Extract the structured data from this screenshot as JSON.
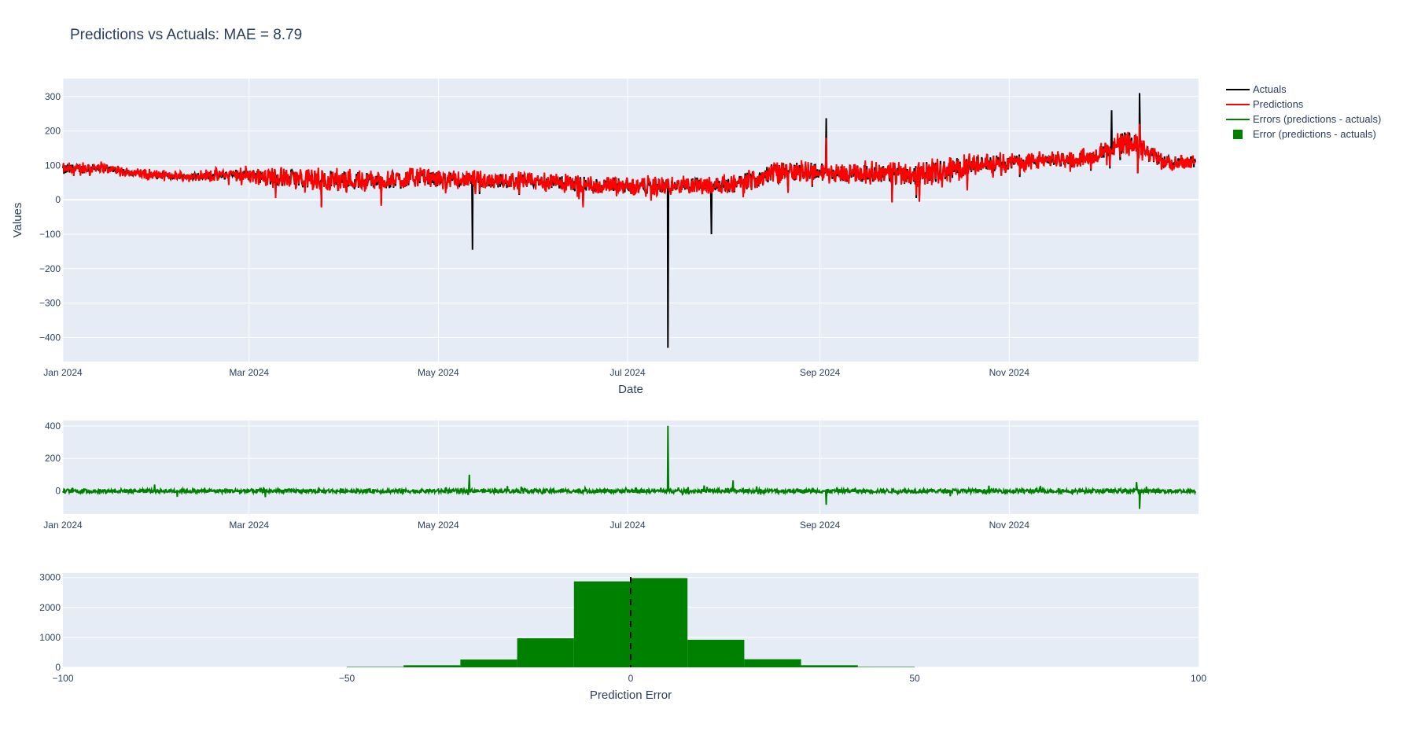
{
  "chart_data": [
    {
      "type": "line",
      "title": "Predictions vs Actuals: MAE = 8.79",
      "xlabel": "Date",
      "ylabel": "Values",
      "x_range": [
        "2024-01-01",
        "2024-12-31"
      ],
      "ylim": [
        -470,
        352
      ],
      "x_ticks": [
        "Jan 2024",
        "Mar 2024",
        "May 2024",
        "Jul 2024",
        "Sep 2024",
        "Nov 2024"
      ],
      "x_tick_days": [
        0,
        60,
        121,
        182,
        244,
        305
      ],
      "y_ticks": [
        300,
        200,
        100,
        0,
        -100,
        -200,
        -300,
        -400
      ],
      "y_tick_labels": [
        "300",
        "200",
        "100",
        "0",
        "−100",
        "−200",
        "−300",
        "−400"
      ],
      "grid": true,
      "legend_position": "right",
      "semi_monthly_level_actuals": [
        90,
        95,
        80,
        70,
        72,
        78,
        70,
        65,
        62,
        60,
        70,
        62,
        60,
        58,
        55,
        45,
        45,
        42,
        48,
        50,
        85,
        90,
        80,
        85,
        80,
        95,
        110,
        115,
        120,
        130,
        175,
        115
      ],
      "semi_monthly_noise": [
        25,
        15,
        12,
        12,
        15,
        25,
        35,
        40,
        40,
        35,
        35,
        30,
        30,
        30,
        30,
        35,
        35,
        30,
        30,
        35,
        40,
        40,
        35,
        40,
        45,
        45,
        35,
        30,
        25,
        25,
        50,
        25
      ],
      "series": [
        {
          "name": "Actuals",
          "color": "#000000",
          "spikes": [
            {
              "day": 132,
              "value": -145
            },
            {
              "day": 195,
              "value": -430
            },
            {
              "day": 209,
              "value": -100
            },
            {
              "day": 246,
              "value": 237
            },
            {
              "day": 347,
              "value": 310
            },
            {
              "day": 338,
              "value": 260
            }
          ]
        },
        {
          "name": "Predictions",
          "color": "#ff0000",
          "spikes": [
            {
              "day": 347,
              "value": 220
            },
            {
              "day": 246,
              "value": 180
            }
          ]
        }
      ]
    },
    {
      "type": "line",
      "title": "",
      "xlabel": "",
      "ylabel": "",
      "ylim": [
        -142,
        433
      ],
      "x_ticks": [
        "Jan 2024",
        "Mar 2024",
        "May 2024",
        "Jul 2024",
        "Sep 2024",
        "Nov 2024"
      ],
      "y_ticks": [
        400,
        200,
        0
      ],
      "y_tick_labels": [
        "400",
        "200",
        "0"
      ],
      "series": [
        {
          "name": "Errors (predictions - actuals)",
          "color": "#008000",
          "noise": 12,
          "spikes": [
            {
              "day": 195,
              "value": 400
            },
            {
              "day": 131,
              "value": 100
            },
            {
              "day": 216,
              "value": 65
            },
            {
              "day": 347,
              "value": -110
            },
            {
              "day": 346,
              "value": 55
            },
            {
              "day": 246,
              "value": -85
            }
          ]
        }
      ]
    },
    {
      "type": "bar",
      "title": "",
      "xlabel": "Prediction Error",
      "ylabel": "",
      "xlim": [
        -100,
        100
      ],
      "ylim": [
        0,
        3150
      ],
      "x_ticks": [
        -100,
        -50,
        0,
        50,
        100
      ],
      "x_tick_labels": [
        "−100",
        "−50",
        "0",
        "50",
        "100"
      ],
      "y_ticks": [
        3000,
        2000,
        1000,
        0
      ],
      "y_tick_labels": [
        "3000",
        "2000",
        "1000",
        "0"
      ],
      "bin_edges": [
        -50,
        -40,
        -30,
        -20,
        -10,
        0,
        10,
        20,
        30,
        40,
        50
      ],
      "values": [
        15,
        70,
        260,
        970,
        2870,
        2980,
        920,
        270,
        70,
        15
      ],
      "series_name": "Error (predictions - actuals)",
      "color": "#008000",
      "reference_line": {
        "x": 0,
        "style": "dashed",
        "color": "#000000"
      }
    }
  ],
  "legend": [
    {
      "label": "Actuals",
      "kind": "line",
      "color": "#000000"
    },
    {
      "label": "Predictions",
      "kind": "line",
      "color": "#ff0000"
    },
    {
      "label": "Errors (predictions - actuals)",
      "kind": "line",
      "color": "#008000"
    },
    {
      "label": "Error (predictions - actuals)",
      "kind": "square",
      "color": "#008000"
    }
  ]
}
